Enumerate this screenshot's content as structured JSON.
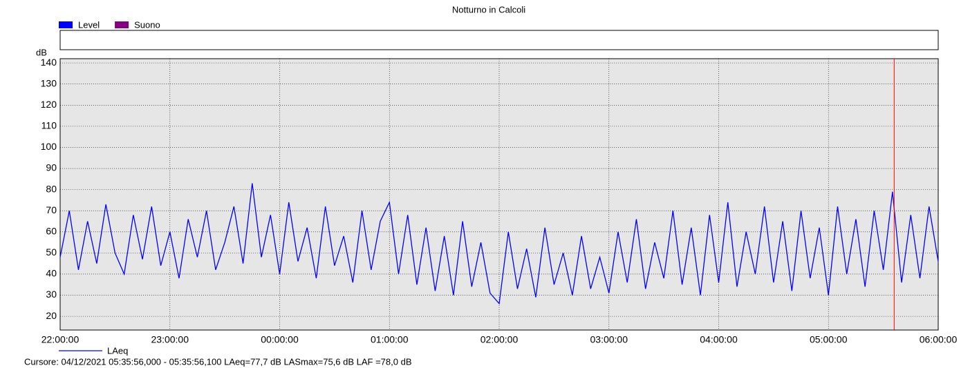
{
  "chart_data": {
    "type": "line",
    "title": "Notturno in Calcoli",
    "strip_legend": [
      {
        "name": "Level",
        "color": "#0000ff"
      },
      {
        "name": "Suono",
        "color": "#800080"
      }
    ],
    "y_unit": "dB",
    "x": [
      "22:00:00",
      "22:05:00",
      "22:10:00",
      "22:15:00",
      "22:20:00",
      "22:25:00",
      "22:30:00",
      "22:35:00",
      "22:40:00",
      "22:45:00",
      "22:50:00",
      "22:55:00",
      "23:00:00",
      "23:05:00",
      "23:10:00",
      "23:15:00",
      "23:20:00",
      "23:25:00",
      "23:30:00",
      "23:35:00",
      "23:40:00",
      "23:45:00",
      "23:50:00",
      "23:55:00",
      "00:00:00",
      "00:05:00",
      "00:10:00",
      "00:15:00",
      "00:20:00",
      "00:25:00",
      "00:30:00",
      "00:35:00",
      "00:40:00",
      "00:45:00",
      "00:50:00",
      "00:55:00",
      "01:00:00",
      "01:05:00",
      "01:10:00",
      "01:15:00",
      "01:20:00",
      "01:25:00",
      "01:30:00",
      "01:35:00",
      "01:40:00",
      "01:45:00",
      "01:50:00",
      "01:55:00",
      "02:00:00",
      "02:05:00",
      "02:10:00",
      "02:15:00",
      "02:20:00",
      "02:25:00",
      "02:30:00",
      "02:35:00",
      "02:40:00",
      "02:45:00",
      "02:50:00",
      "02:55:00",
      "03:00:00",
      "03:05:00",
      "03:10:00",
      "03:15:00",
      "03:20:00",
      "03:25:00",
      "03:30:00",
      "03:35:00",
      "03:40:00",
      "03:45:00",
      "03:50:00",
      "03:55:00",
      "04:00:00",
      "04:05:00",
      "04:10:00",
      "04:15:00",
      "04:20:00",
      "04:25:00",
      "04:30:00",
      "04:35:00",
      "04:40:00",
      "04:45:00",
      "04:50:00",
      "04:55:00",
      "05:00:00",
      "05:05:00",
      "05:10:00",
      "05:15:00",
      "05:20:00",
      "05:25:00",
      "05:30:00",
      "05:35:00",
      "05:40:00",
      "05:45:00",
      "05:50:00",
      "05:55:00",
      "06:00:00"
    ],
    "series": [
      {
        "name": "LAeq",
        "color": "#0000ff",
        "values": [
          48,
          70,
          42,
          65,
          45,
          73,
          50,
          40,
          68,
          47,
          72,
          44,
          60,
          38,
          66,
          48,
          70,
          42,
          55,
          72,
          45,
          83,
          48,
          68,
          40,
          74,
          46,
          62,
          38,
          72,
          44,
          58,
          36,
          70,
          42,
          65,
          74,
          40,
          68,
          35,
          62,
          32,
          58,
          30,
          65,
          34,
          55,
          31,
          26,
          60,
          33,
          52,
          29,
          62,
          35,
          50,
          30,
          58,
          33,
          48,
          31,
          60,
          36,
          66,
          33,
          55,
          38,
          70,
          35,
          62,
          30,
          68,
          36,
          74,
          34,
          60,
          40,
          72,
          36,
          65,
          32,
          70,
          38,
          62,
          30,
          72,
          40,
          66,
          34,
          70,
          42,
          79,
          36,
          68,
          38,
          72,
          46
        ]
      }
    ],
    "xlim": [
      "22:00:00",
      "06:00:00"
    ],
    "xticks": [
      "22:00:00",
      "23:00:00",
      "00:00:00",
      "01:00:00",
      "02:00:00",
      "03:00:00",
      "04:00:00",
      "05:00:00",
      "06:00:00"
    ],
    "ylim": [
      13.5,
      142
    ],
    "yticks": [
      20,
      30,
      40,
      50,
      60,
      70,
      80,
      90,
      100,
      110,
      120,
      130,
      140
    ],
    "grid": true,
    "cursor": {
      "x": "05:35:56",
      "color": "#ff0000"
    },
    "footer": "Cursore: 04/12/2021 05:35:56,000 - 05:35:56,100  LAeq=77,7 dB  LASmax=75,6 dB  LAF =78,0 dB"
  }
}
